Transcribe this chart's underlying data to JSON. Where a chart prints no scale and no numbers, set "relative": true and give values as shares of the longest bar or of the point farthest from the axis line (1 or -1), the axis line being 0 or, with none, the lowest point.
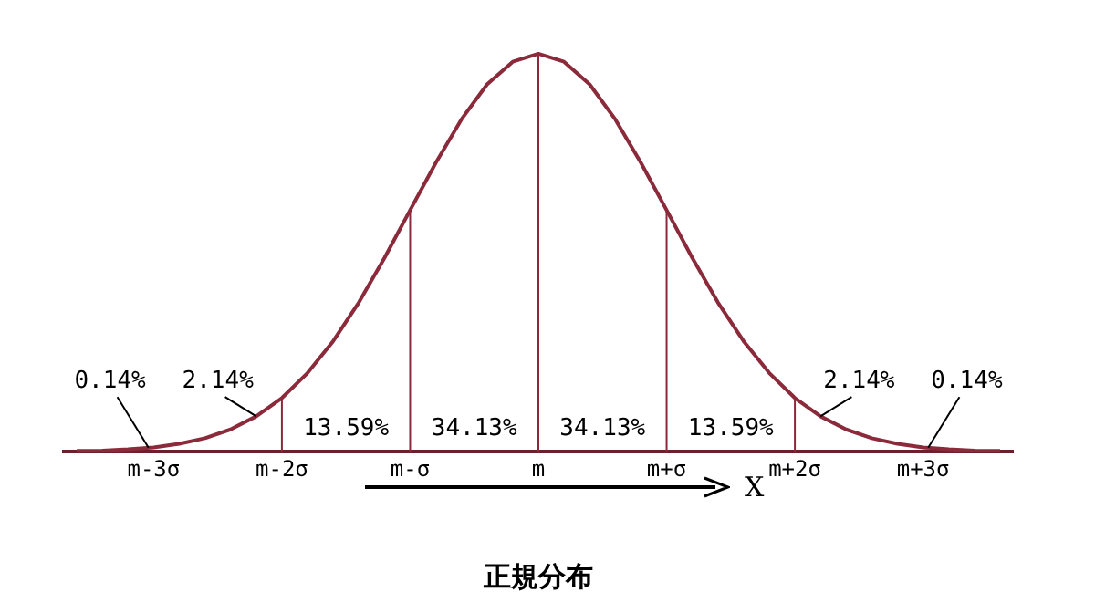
{
  "chart_data": {
    "type": "line",
    "title": "正規分布",
    "xlabel": "X",
    "relative": true,
    "categories": [
      null,
      null,
      null,
      "m-3σ",
      null,
      null,
      null,
      null,
      "m-2σ",
      null,
      null,
      null,
      null,
      "m-σ",
      null,
      null,
      null,
      null,
      "m",
      null,
      null,
      null,
      null,
      "m+σ",
      null,
      null,
      null,
      null,
      "m+2σ",
      null,
      null,
      null,
      null,
      "m+3σ",
      null,
      null,
      null
    ],
    "series": [
      {
        "color": "#8b2a3a",
        "values": [
          0.002,
          0.003,
          0.006,
          0.011,
          0.02,
          0.034,
          0.056,
          0.089,
          0.135,
          0.198,
          0.278,
          0.375,
          0.487,
          0.607,
          0.726,
          0.835,
          0.923,
          0.98,
          1,
          0.98,
          0.923,
          0.835,
          0.726,
          0.607,
          0.487,
          0.375,
          0.278,
          0.198,
          0.135,
          0.089,
          0.056,
          0.034,
          0.02,
          0.011,
          0.006,
          0.003,
          0.002
        ]
      }
    ],
    "ref_lines": [
      {
        "axis": "x",
        "value": "m-2σ",
        "color": "#8b2a3a"
      },
      {
        "axis": "x",
        "value": "m-σ",
        "color": "#8b2a3a"
      },
      {
        "axis": "x",
        "value": "m",
        "color": "#8b2a3a"
      },
      {
        "axis": "x",
        "value": "m+σ",
        "color": "#8b2a3a"
      },
      {
        "axis": "x",
        "value": "m+2σ",
        "color": "#8b2a3a"
      }
    ],
    "annotations": [
      "0.14%",
      "2.14%",
      "13.59%",
      "34.13%",
      "34.13%",
      "13.59%",
      "2.14%",
      "0.14%"
    ],
    "grid": false,
    "legend": false,
    "marker": "none",
    "line_style": "solid"
  }
}
